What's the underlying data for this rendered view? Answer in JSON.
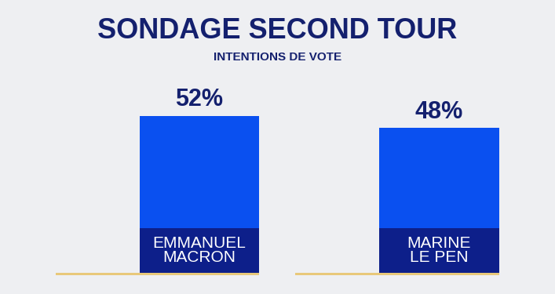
{
  "chart_data": {
    "type": "bar",
    "title": "SONDAGE SECOND TOUR",
    "subtitle": "INTENTIONS DE VOTE",
    "categories": [
      "EMMANUEL\nMACRON",
      "MARINE\nLE PEN"
    ],
    "values": [
      52,
      48
    ],
    "value_labels": [
      "52%",
      "48%"
    ],
    "color": "#0a50f0",
    "data_labels": true,
    "tick_labels": false,
    "grid": false
  }
}
